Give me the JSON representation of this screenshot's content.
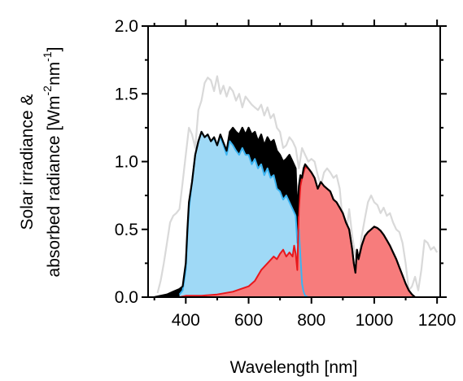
{
  "chart_data": {
    "type": "area",
    "xlabel": "Wavelength [nm]",
    "ylabel_line1": "Solar irradiance &",
    "ylabel_line2_prefix": "absorbed radiance [Wm",
    "ylabel_line2_exp1": "-2",
    "ylabel_line2_mid": "nm",
    "ylabel_line2_exp2": "-1",
    "ylabel_line2_suffix": "]",
    "xlim": [
      280,
      1210
    ],
    "ylim": [
      0,
      2.0
    ],
    "x_ticks": [
      400,
      600,
      800,
      1000,
      1200
    ],
    "x_tick_labels": [
      "400",
      "600",
      "800",
      "1000",
      "1200"
    ],
    "y_ticks": [
      0,
      0.5,
      1.0,
      1.5,
      2.0
    ],
    "y_tick_labels": [
      "0.0",
      "0.5",
      "1.0",
      "1.5",
      "2.0"
    ],
    "legend": "none",
    "grid": false,
    "colors": {
      "solar": "#d9d9d9",
      "absorbed_total": "#000000",
      "blue_fill": "#9fd9f6",
      "blue_line": "#3bb4f2",
      "red_fill": "#f77c7c",
      "red_line": "#e8171c"
    },
    "series": [
      {
        "key": "solar",
        "style": "line",
        "x": [
          310,
          320,
          330,
          340,
          350,
          360,
          370,
          380,
          390,
          400,
          410,
          420,
          430,
          440,
          450,
          460,
          470,
          480,
          490,
          500,
          510,
          520,
          530,
          540,
          550,
          560,
          570,
          580,
          590,
          600,
          610,
          620,
          630,
          640,
          650,
          660,
          670,
          680,
          690,
          700,
          710,
          720,
          730,
          740,
          750,
          760,
          770,
          780,
          790,
          800,
          810,
          820,
          830,
          840,
          850,
          860,
          870,
          880,
          890,
          900,
          910,
          920,
          930,
          940,
          950,
          960,
          970,
          980,
          990,
          1000,
          1010,
          1020,
          1030,
          1040,
          1050,
          1060,
          1070,
          1080,
          1090,
          1100,
          1110,
          1120,
          1130,
          1140,
          1150,
          1160,
          1170,
          1180,
          1190,
          1200
        ],
        "y": [
          0.03,
          0.12,
          0.25,
          0.4,
          0.55,
          0.6,
          0.62,
          0.65,
          0.85,
          1.05,
          1.25,
          1.2,
          1.1,
          1.38,
          1.45,
          1.58,
          1.62,
          1.6,
          1.52,
          1.63,
          1.5,
          1.56,
          1.48,
          1.55,
          1.52,
          1.45,
          1.5,
          1.4,
          1.48,
          1.45,
          1.42,
          1.4,
          1.38,
          1.42,
          1.34,
          1.4,
          1.32,
          1.35,
          1.25,
          1.22,
          1.1,
          1.12,
          1.18,
          1.15,
          1.1,
          0.95,
          1.1,
          1.05,
          1.0,
          1.02,
          1.0,
          0.9,
          0.82,
          0.92,
          0.95,
          0.92,
          0.88,
          0.9,
          0.8,
          0.55,
          0.45,
          0.65,
          0.45,
          0.3,
          0.25,
          0.45,
          0.58,
          0.7,
          0.75,
          0.7,
          0.68,
          0.62,
          0.66,
          0.6,
          0.62,
          0.55,
          0.5,
          0.48,
          0.4,
          0.25,
          0.05,
          0.08,
          0.15,
          0.05,
          0.2,
          0.42,
          0.4,
          0.35,
          0.37,
          0.33
        ]
      },
      {
        "key": "absorbed_total",
        "style": "line",
        "x": [
          300,
          320,
          340,
          360,
          380,
          390,
          400,
          405,
          410,
          420,
          430,
          440,
          450,
          460,
          470,
          480,
          490,
          500,
          510,
          520,
          530,
          540,
          550,
          560,
          570,
          580,
          590,
          600,
          610,
          620,
          630,
          640,
          650,
          660,
          670,
          680,
          690,
          700,
          710,
          720,
          730,
          740,
          750,
          755,
          760,
          765,
          770,
          775,
          780,
          790,
          800,
          810,
          820,
          830,
          840,
          850,
          860,
          870,
          880,
          890,
          900,
          910,
          920,
          930,
          935,
          940,
          945,
          950,
          960,
          970,
          980,
          990,
          1000,
          1010,
          1020,
          1030,
          1040,
          1050,
          1060,
          1070,
          1080,
          1090,
          1100,
          1110,
          1120,
          1130
        ],
        "y": [
          0.0,
          0.01,
          0.02,
          0.04,
          0.06,
          0.08,
          0.25,
          0.5,
          0.7,
          0.85,
          1.05,
          1.15,
          1.22,
          1.18,
          1.2,
          1.15,
          1.18,
          1.12,
          1.2,
          1.14,
          1.08,
          1.22,
          1.25,
          1.22,
          1.2,
          1.25,
          1.2,
          1.25,
          1.2,
          1.22,
          1.15,
          1.2,
          1.12,
          1.18,
          1.14,
          1.16,
          1.08,
          1.05,
          1.0,
          1.02,
          1.05,
          1.0,
          0.95,
          0.6,
          0.82,
          0.9,
          0.88,
          0.95,
          0.98,
          0.95,
          0.92,
          0.88,
          0.8,
          0.85,
          0.82,
          0.8,
          0.78,
          0.72,
          0.7,
          0.66,
          0.62,
          0.55,
          0.5,
          0.35,
          0.25,
          0.18,
          0.35,
          0.28,
          0.38,
          0.45,
          0.48,
          0.5,
          0.52,
          0.51,
          0.49,
          0.46,
          0.42,
          0.38,
          0.33,
          0.28,
          0.22,
          0.16,
          0.1,
          0.05,
          0.02,
          0.0
        ]
      },
      {
        "key": "blue_fill",
        "style": "area",
        "x": [
          380,
          390,
          400,
          405,
          410,
          420,
          430,
          440,
          450,
          460,
          470,
          480,
          490,
          500,
          510,
          520,
          530,
          540,
          550,
          560,
          570,
          580,
          590,
          600,
          610,
          620,
          630,
          640,
          650,
          660,
          670,
          680,
          690,
          700,
          710,
          720,
          730,
          740,
          750,
          755,
          760,
          765,
          770,
          775,
          780,
          790,
          800
        ],
        "y": [
          0.02,
          0.05,
          0.2,
          0.45,
          0.65,
          0.85,
          1.05,
          1.15,
          1.22,
          1.18,
          1.2,
          1.15,
          1.17,
          1.12,
          1.18,
          1.12,
          1.05,
          1.15,
          1.12,
          1.08,
          1.05,
          1.1,
          1.05,
          1.05,
          0.98,
          1.02,
          0.95,
          0.98,
          0.9,
          0.95,
          0.88,
          0.9,
          0.8,
          0.78,
          0.72,
          0.75,
          0.7,
          0.65,
          0.6,
          0.4,
          0.5,
          0.3,
          0.1,
          0.04,
          0.01,
          0.0,
          0.0
        ]
      },
      {
        "key": "red_fill",
        "style": "area",
        "x": [
          380,
          400,
          450,
          500,
          550,
          600,
          620,
          640,
          660,
          680,
          690,
          700,
          710,
          720,
          730,
          740,
          745,
          750,
          755,
          760,
          765,
          770,
          775,
          780,
          790,
          800,
          810,
          820,
          830,
          840,
          850,
          860,
          870,
          880,
          890,
          900,
          910,
          920,
          930,
          935,
          940,
          945,
          950,
          960,
          970,
          980,
          990,
          1000,
          1010,
          1020,
          1030,
          1040,
          1050,
          1060,
          1070,
          1080,
          1090,
          1100,
          1110,
          1120,
          1130
        ],
        "y": [
          0.0,
          0.01,
          0.01,
          0.02,
          0.04,
          0.08,
          0.12,
          0.2,
          0.25,
          0.3,
          0.28,
          0.32,
          0.35,
          0.3,
          0.33,
          0.3,
          0.38,
          0.32,
          0.2,
          0.65,
          0.82,
          0.88,
          0.92,
          0.96,
          0.95,
          0.92,
          0.88,
          0.8,
          0.85,
          0.82,
          0.8,
          0.78,
          0.72,
          0.7,
          0.66,
          0.62,
          0.55,
          0.5,
          0.35,
          0.25,
          0.18,
          0.35,
          0.28,
          0.38,
          0.45,
          0.48,
          0.5,
          0.52,
          0.51,
          0.49,
          0.46,
          0.42,
          0.38,
          0.33,
          0.28,
          0.22,
          0.16,
          0.1,
          0.05,
          0.02,
          0.0
        ]
      }
    ]
  }
}
